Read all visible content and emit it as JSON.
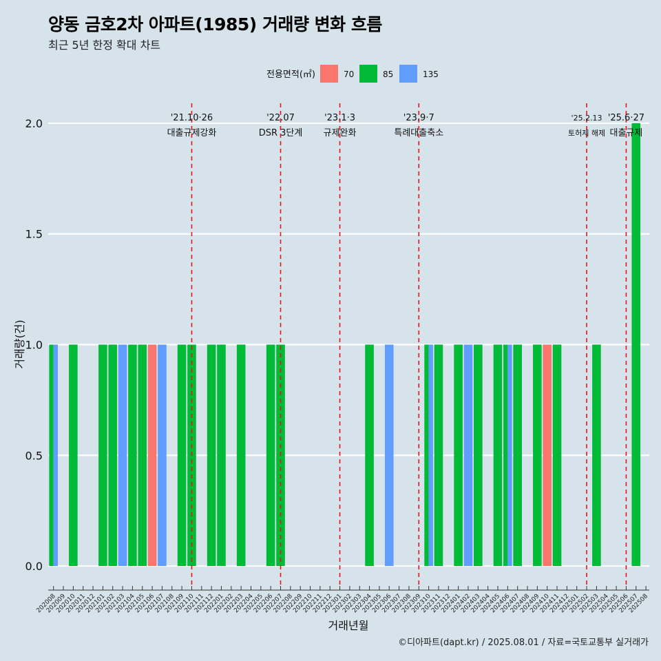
{
  "title": "양동 금호2차 아파트(1985) 거래량 변화 흐름",
  "subtitle": "최근 5년 한정 확대 차트",
  "caption": "©디아파트(dapt.kr) / 2025.08.01 / 자료=국토교통부 실거래가",
  "chart_data": {
    "type": "bar",
    "title": "양동 금호2차 아파트(1985) 거래량 변화 흐름",
    "xlabel": "거래년월",
    "ylabel": "거래량(건)",
    "ylim": [
      -0.09,
      2.09
    ],
    "yticks": [
      0.0,
      0.5,
      1.0,
      1.5,
      2.0
    ],
    "ytick_labels": [
      "0.0",
      "0.5",
      "1.0",
      "1.5",
      "2.0"
    ],
    "grid": true,
    "legend": {
      "title": "전용면적(㎡)",
      "position": "top",
      "entries": [
        {
          "name": "70",
          "color": "#F8766D"
        },
        {
          "name": "85",
          "color": "#00BA38"
        },
        {
          "name": "135",
          "color": "#619CFF"
        }
      ]
    },
    "categories": [
      "202008",
      "202009",
      "202010",
      "202011",
      "202012",
      "202101",
      "202102",
      "202103",
      "202104",
      "202105",
      "202106",
      "202107",
      "202108",
      "202109",
      "202110",
      "202111",
      "202112",
      "202201",
      "202202",
      "202203",
      "202204",
      "202205",
      "202206",
      "202207",
      "202208",
      "202209",
      "202210",
      "202211",
      "202212",
      "202301",
      "202302",
      "202303",
      "202304",
      "202305",
      "202306",
      "202307",
      "202308",
      "202309",
      "202310",
      "202311",
      "202312",
      "202401",
      "202402",
      "202403",
      "202404",
      "202405",
      "202406",
      "202407",
      "202408",
      "202409",
      "202410",
      "202411",
      "202412",
      "202501",
      "202502",
      "202503",
      "202504",
      "202505",
      "202506",
      "202507",
      "202508"
    ],
    "bars": [
      {
        "month": "202008",
        "series": "85",
        "value": 1
      },
      {
        "month": "202008",
        "series": "135",
        "value": 1
      },
      {
        "month": "202010",
        "series": "85",
        "value": 1
      },
      {
        "month": "202101",
        "series": "85",
        "value": 1
      },
      {
        "month": "202102",
        "series": "85",
        "value": 1
      },
      {
        "month": "202103",
        "series": "135",
        "value": 1
      },
      {
        "month": "202104",
        "series": "85",
        "value": 1
      },
      {
        "month": "202105",
        "series": "85",
        "value": 1
      },
      {
        "month": "202106",
        "series": "70",
        "value": 1
      },
      {
        "month": "202107",
        "series": "135",
        "value": 1
      },
      {
        "month": "202109",
        "series": "85",
        "value": 1
      },
      {
        "month": "202110",
        "series": "85",
        "value": 1
      },
      {
        "month": "202112",
        "series": "85",
        "value": 1
      },
      {
        "month": "202201",
        "series": "85",
        "value": 1
      },
      {
        "month": "202203",
        "series": "85",
        "value": 1
      },
      {
        "month": "202206",
        "series": "85",
        "value": 1
      },
      {
        "month": "202207",
        "series": "85",
        "value": 1
      },
      {
        "month": "202304",
        "series": "85",
        "value": 1
      },
      {
        "month": "202306",
        "series": "135",
        "value": 1
      },
      {
        "month": "202310",
        "series": "85",
        "value": 1
      },
      {
        "month": "202310",
        "series": "135",
        "value": 1
      },
      {
        "month": "202311",
        "series": "85",
        "value": 1
      },
      {
        "month": "202401",
        "series": "85",
        "value": 1
      },
      {
        "month": "202402",
        "series": "135",
        "value": 1
      },
      {
        "month": "202403",
        "series": "85",
        "value": 1
      },
      {
        "month": "202405",
        "series": "85",
        "value": 1
      },
      {
        "month": "202406",
        "series": "85",
        "value": 1
      },
      {
        "month": "202406",
        "series": "135",
        "value": 1
      },
      {
        "month": "202407",
        "series": "85",
        "value": 1
      },
      {
        "month": "202409",
        "series": "85",
        "value": 1
      },
      {
        "month": "202410",
        "series": "70",
        "value": 1
      },
      {
        "month": "202411",
        "series": "85",
        "value": 1
      },
      {
        "month": "202503",
        "series": "85",
        "value": 1
      },
      {
        "month": "202507",
        "series": "85",
        "value": 2
      }
    ],
    "annotations": [
      {
        "at": "202110",
        "date": "'21.10·26",
        "text": "대출규제강화",
        "size": "normal"
      },
      {
        "at": "202207",
        "date": "'22.07",
        "text": "DSR 3단계",
        "size": "normal"
      },
      {
        "at": "202301",
        "date": "'23.1·3",
        "text": "규제완화",
        "size": "normal"
      },
      {
        "at": "202309",
        "date": "'23.9·7",
        "text": "특례대출축소",
        "size": "normal"
      },
      {
        "at": "202502",
        "date": "'25.2.13",
        "text": "토허제 해제",
        "size": "small"
      },
      {
        "at": "202506",
        "date": "'25.6·27",
        "text": "대출규제",
        "size": "normal"
      }
    ]
  }
}
